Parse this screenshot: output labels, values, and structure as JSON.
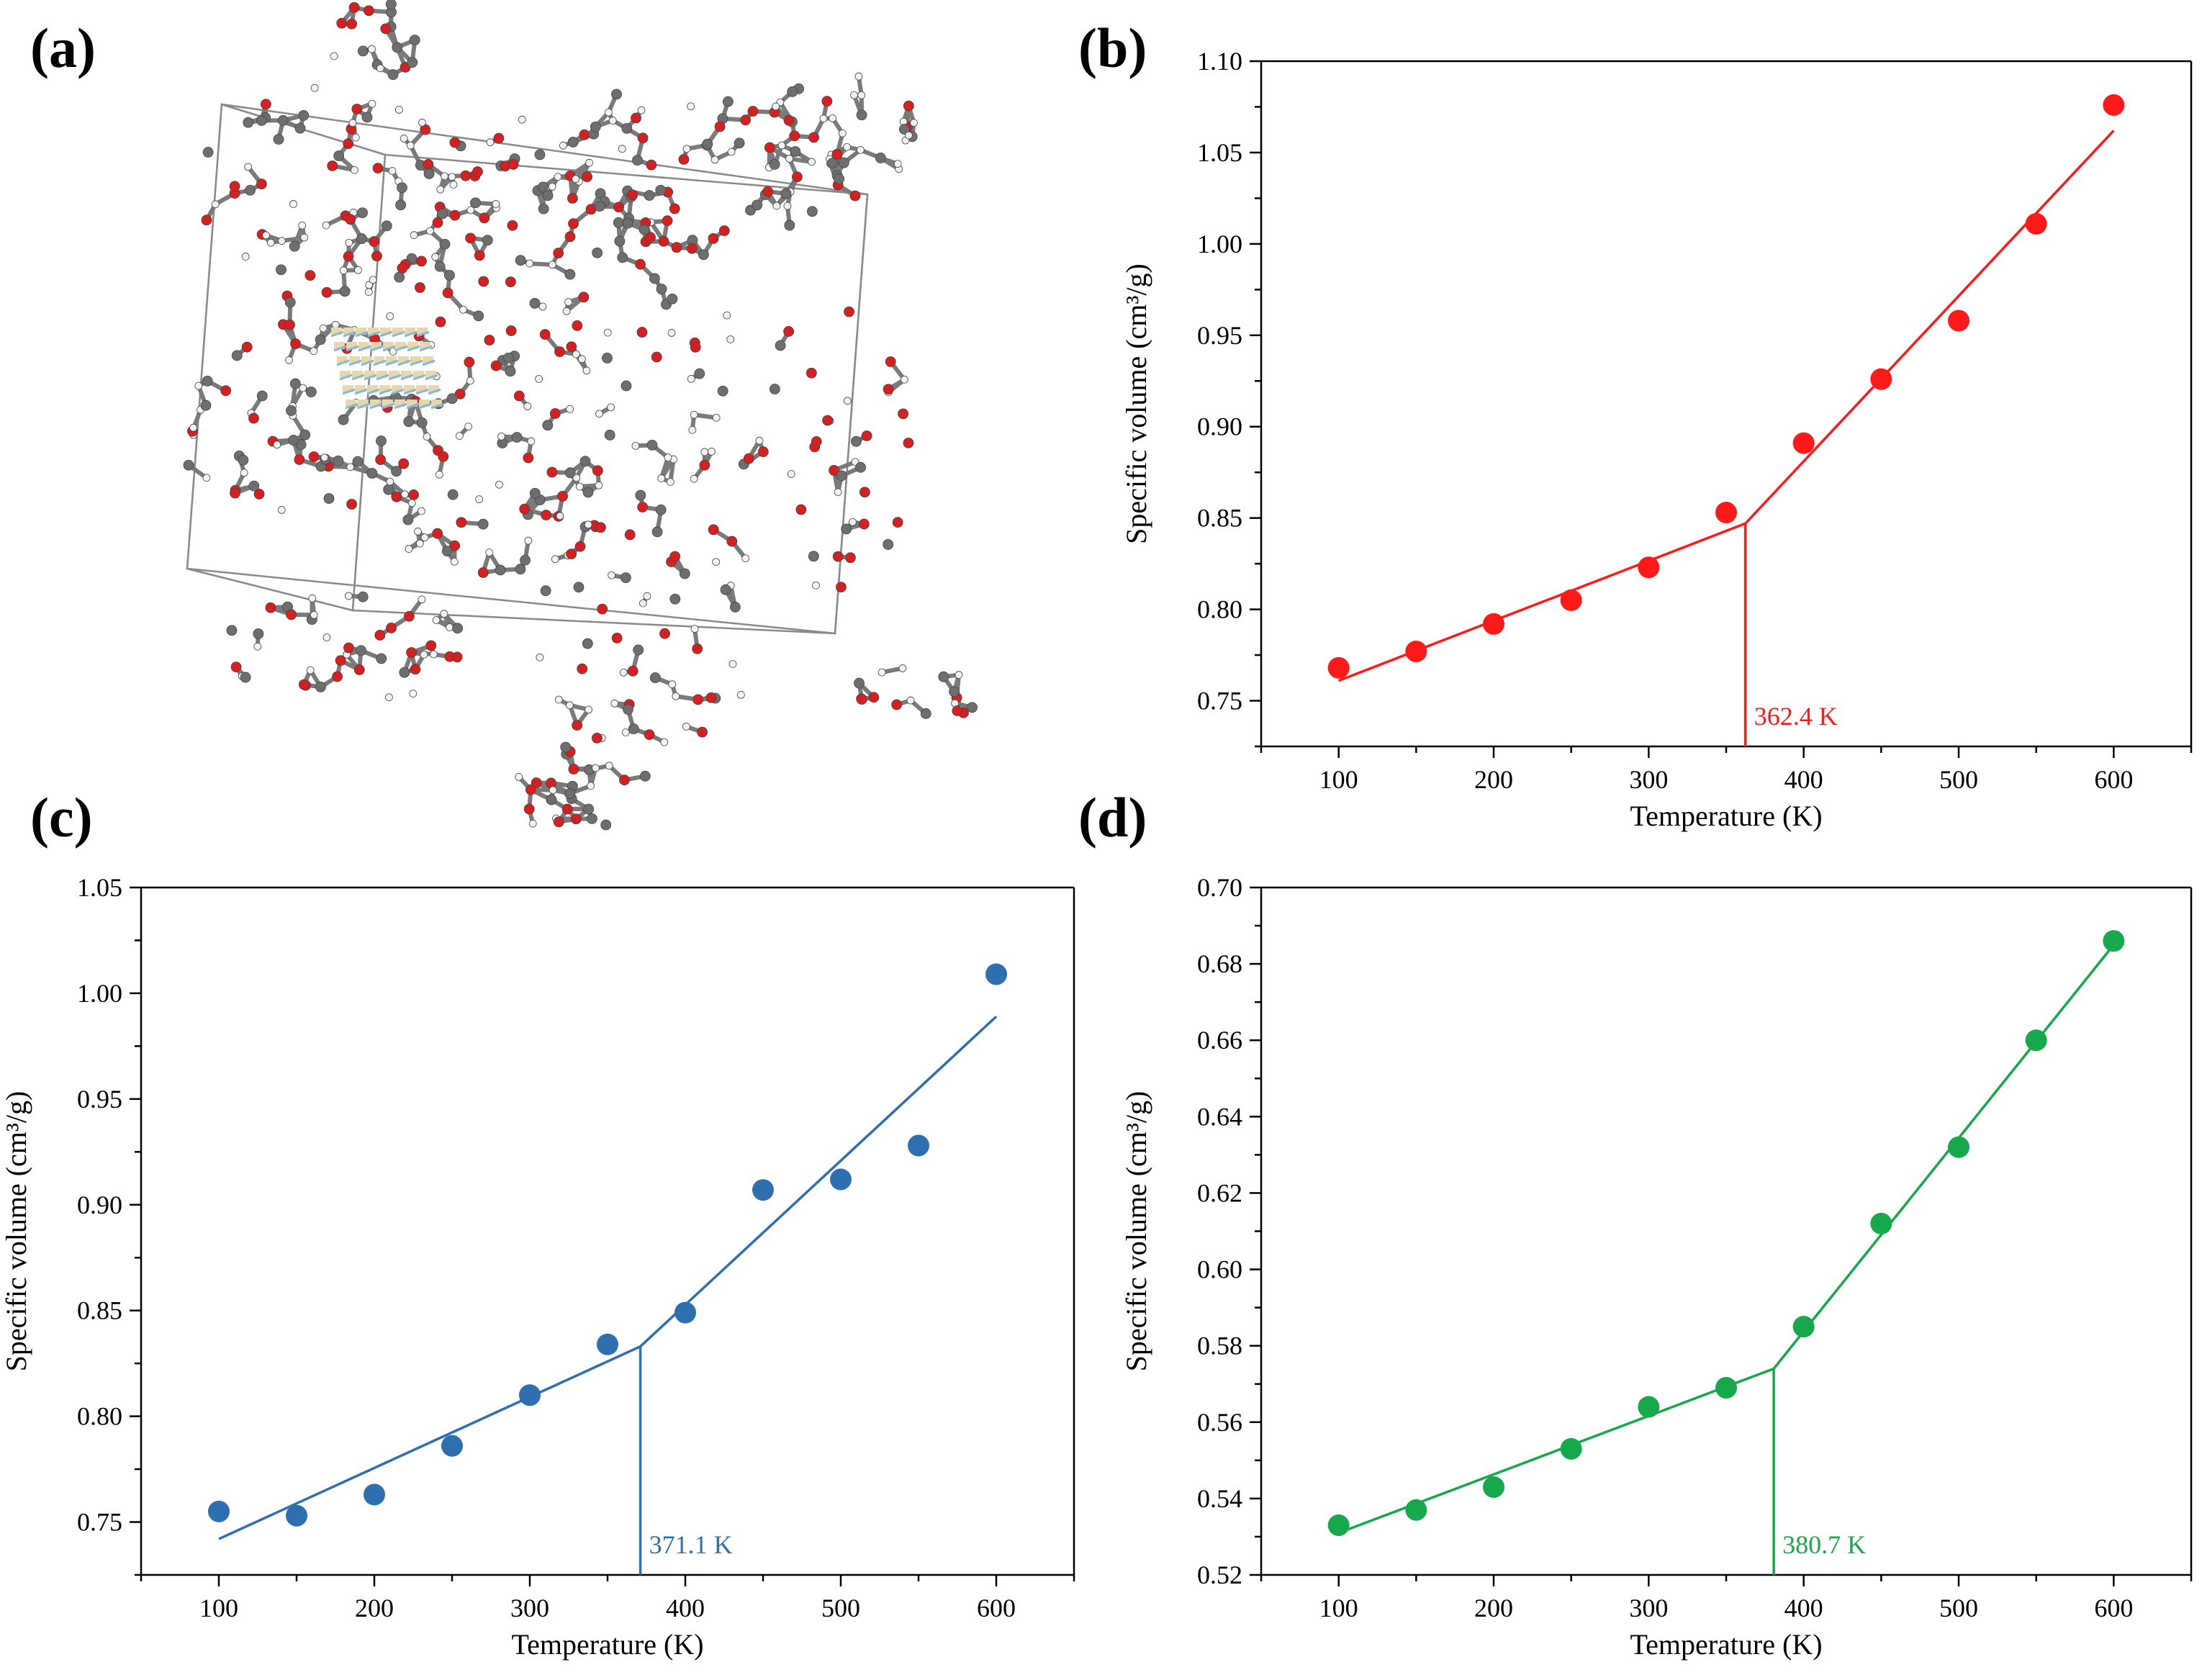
{
  "panel_labels": {
    "a": "(a)",
    "b": "(b)",
    "c": "(c)",
    "d": "(d)"
  },
  "molecule_panel": {
    "atom_colors": {
      "oxygen": "#d42020",
      "carbon": "#6e6e6e",
      "hydrogen": "#f2f2f2",
      "crystal_light": "#e9d7a8",
      "crystal_blue": "#7fb8e2"
    }
  },
  "chart_data": [
    {
      "id": "b",
      "type": "scatter",
      "color": "#ff1a1a",
      "xlabel": "Temperature (K)",
      "ylabel": "Specific volume (cm³/g)",
      "xlim": [
        50,
        650
      ],
      "ylim": [
        0.725,
        1.1
      ],
      "xticks": [
        100,
        200,
        300,
        400,
        500,
        600
      ],
      "yticks": [
        0.75,
        0.8,
        0.85,
        0.9,
        0.95,
        1.0,
        1.05,
        1.1
      ],
      "ytick_decimals": 2,
      "x": [
        100,
        150,
        200,
        250,
        300,
        350,
        400,
        450,
        500,
        550,
        600
      ],
      "y": [
        0.768,
        0.777,
        0.792,
        0.805,
        0.823,
        0.853,
        0.891,
        0.926,
        0.958,
        1.011,
        1.076
      ],
      "fit_line": {
        "x": [
          100,
          362.4,
          600
        ],
        "y": [
          0.761,
          0.847,
          1.062
        ]
      },
      "transition": {
        "x": 362.4,
        "label": "362.4 K"
      }
    },
    {
      "id": "c",
      "type": "scatter",
      "color": "#2e6fb0",
      "xlabel": "Temperature (K)",
      "ylabel": "Specific volume (cm³/g)",
      "xlim": [
        50,
        650
      ],
      "ylim": [
        0.725,
        1.05
      ],
      "xticks": [
        100,
        200,
        300,
        400,
        500,
        600
      ],
      "yticks": [
        0.75,
        0.8,
        0.85,
        0.9,
        0.95,
        1.0,
        1.05
      ],
      "ytick_decimals": 2,
      "x": [
        100,
        150,
        200,
        250,
        300,
        350,
        400,
        450,
        500,
        550,
        600
      ],
      "y": [
        0.755,
        0.753,
        0.763,
        0.786,
        0.81,
        0.834,
        0.849,
        0.907,
        0.912,
        0.928,
        1.009
      ],
      "fit_line": {
        "x": [
          100,
          371.1,
          600
        ],
        "y": [
          0.742,
          0.833,
          0.989
        ]
      },
      "transition": {
        "x": 371.1,
        "label": "371.1 K"
      }
    },
    {
      "id": "d",
      "type": "scatter",
      "color": "#16a84a",
      "xlabel": "Temperature (K)",
      "ylabel": "Specific volume (cm³/g)",
      "xlim": [
        50,
        650
      ],
      "ylim": [
        0.52,
        0.7
      ],
      "xticks": [
        100,
        200,
        300,
        400,
        500,
        600
      ],
      "yticks": [
        0.52,
        0.54,
        0.56,
        0.58,
        0.6,
        0.62,
        0.64,
        0.66,
        0.68,
        0.7
      ],
      "ytick_decimals": 2,
      "x": [
        100,
        150,
        200,
        250,
        300,
        350,
        400,
        450,
        500,
        550,
        600
      ],
      "y": [
        0.533,
        0.537,
        0.543,
        0.553,
        0.564,
        0.569,
        0.585,
        0.612,
        0.632,
        0.66,
        0.686
      ],
      "fit_line": {
        "x": [
          100,
          380.7,
          600
        ],
        "y": [
          0.531,
          0.574,
          0.685
        ]
      },
      "transition": {
        "x": 380.7,
        "label": "380.7 K"
      }
    }
  ]
}
